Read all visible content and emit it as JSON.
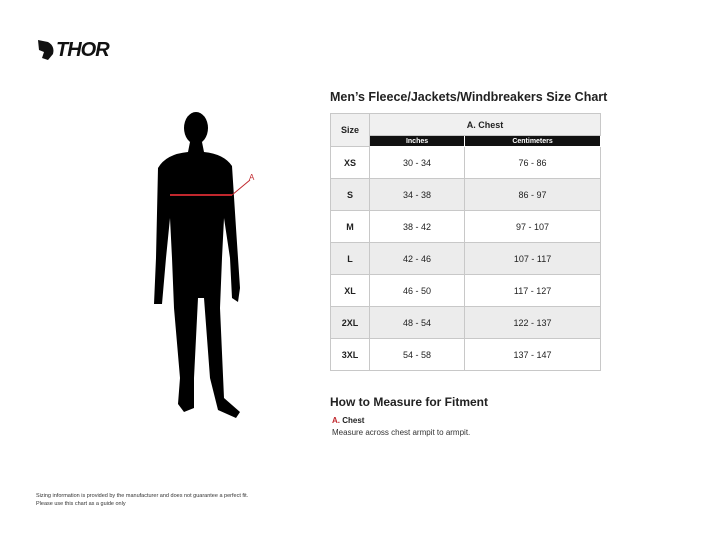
{
  "brand": {
    "name": "THOR"
  },
  "title": "Men’s Fleece/Jackets/Windbreakers Size Chart",
  "figure": {
    "marker_label": "A",
    "marker_color": "#c0272d"
  },
  "table": {
    "size_header": "Size",
    "group_header": "A. Chest",
    "sub_headers": [
      "Inches",
      "Centimeters"
    ],
    "rows": [
      {
        "size": "XS",
        "inches": "30 - 34",
        "cm": "76 - 86"
      },
      {
        "size": "S",
        "inches": "34 - 38",
        "cm": "86 - 97"
      },
      {
        "size": "M",
        "inches": "38 - 42",
        "cm": "97 - 107"
      },
      {
        "size": "L",
        "inches": "42 - 46",
        "cm": "107 - 117"
      },
      {
        "size": "XL",
        "inches": "46 - 50",
        "cm": "117 - 127"
      },
      {
        "size": "2XL",
        "inches": "48 - 54",
        "cm": "122 - 137"
      },
      {
        "size": "3XL",
        "inches": "54 - 58",
        "cm": "137 - 147"
      }
    ]
  },
  "howto": {
    "title": "How to Measure for Fitment",
    "letter": "A.",
    "label": "Chest",
    "desc": "Measure across chest armpit to armpit."
  },
  "disclaimer": [
    "Sizing information is provided by the manufacturer and does not guarantee a perfect fit.",
    "Please use this chart as a guide only"
  ]
}
